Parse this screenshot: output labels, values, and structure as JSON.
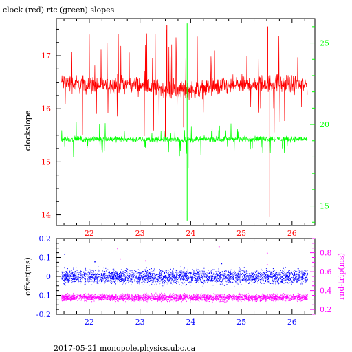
{
  "chart_data": [
    {
      "type": "line",
      "title": "clock (red) rtc (green) slopes",
      "ylabel": "clockslope",
      "xlim": [
        21.35,
        26.45
      ],
      "x_ticks": [
        "22",
        "23",
        "24",
        "25",
        "26"
      ],
      "ylim_left": [
        13.8,
        17.7
      ],
      "y_ticks_left": [
        "14",
        "15",
        "16",
        "17"
      ],
      "ylim_right": [
        13.8,
        26.5
      ],
      "y_ticks_right": [
        "15",
        "20",
        "25"
      ],
      "colors": {
        "left_axis": "#ff0000",
        "right_axis": "#00ff00",
        "x_axis": "#ff0000",
        "frame": "#000000"
      },
      "grid": false,
      "series": [
        {
          "name": "clock",
          "axis": "left",
          "color": "#ff0000",
          "x": [
            21.45,
            21.7,
            22.0,
            22.3,
            22.6,
            22.9,
            23.2,
            23.5,
            23.8,
            24.1,
            24.4,
            24.7,
            25.0,
            25.3,
            25.6,
            25.9,
            26.3
          ],
          "mean": [
            16.5,
            16.47,
            16.45,
            16.44,
            16.47,
            16.45,
            16.4,
            16.37,
            16.36,
            16.37,
            16.4,
            16.42,
            16.45,
            16.47,
            16.48,
            16.47,
            16.44
          ],
          "band": 0.25,
          "spikes": [
            {
              "x": 23.53,
              "y": 17.57
            },
            {
              "x": 23.5,
              "y": 15.45
            },
            {
              "x": 23.86,
              "y": 15.65
            },
            {
              "x": 25.52,
              "y": 17.55
            },
            {
              "x": 25.55,
              "y": 13.97
            }
          ]
        },
        {
          "name": "rtc",
          "axis": "right",
          "color": "#00ff00",
          "x": [
            21.45,
            22.0,
            22.6,
            23.2,
            23.8,
            24.4,
            25.0,
            25.6,
            26.3
          ],
          "mean": [
            19.1,
            19.1,
            19.1,
            19.08,
            19.05,
            19.1,
            19.1,
            19.12,
            19.1
          ],
          "band": 0.25,
          "spikes": [
            {
              "x": 23.93,
              "y": 26.2
            },
            {
              "x": 23.93,
              "y": 14.1
            },
            {
              "x": 23.95,
              "y": 17.3
            }
          ]
        }
      ]
    },
    {
      "type": "scatter",
      "ylabel": "offset(ms)",
      "ylabel_right": "rnd-trip(ms)",
      "xlim": [
        21.35,
        26.45
      ],
      "x_ticks": [
        "22",
        "23",
        "24",
        "25",
        "26"
      ],
      "ylim_left": [
        -0.2,
        0.2
      ],
      "y_ticks_left": [
        "-0.2",
        "-0.1",
        "0",
        "0.1",
        "0.2"
      ],
      "ylim_right": [
        0.15,
        0.95
      ],
      "y_ticks_right": [
        "0.2",
        "0.4",
        "0.6",
        "0.8"
      ],
      "colors": {
        "left_axis": "#0000ff",
        "right_axis": "#ff00ff",
        "x_axis": "#0000ff",
        "frame": "#000000"
      },
      "series": [
        {
          "name": "offset",
          "axis": "left",
          "color": "#0000ff",
          "x_range": [
            21.45,
            26.3
          ],
          "center": 0.0,
          "spread": 0.045,
          "outliers": [
            {
              "x": 21.5,
              "y": 0.12
            },
            {
              "x": 22.1,
              "y": 0.08
            },
            {
              "x": 24.6,
              "y": 0.07
            }
          ]
        },
        {
          "name": "rnd-trip",
          "axis": "right",
          "color": "#ff00ff",
          "x_range": [
            21.45,
            26.3
          ],
          "center": 0.33,
          "spread": 0.045,
          "outliers": [
            {
              "x": 22.55,
              "y": 0.85
            },
            {
              "x": 22.6,
              "y": 0.74
            },
            {
              "x": 23.1,
              "y": 0.72
            },
            {
              "x": 25.5,
              "y": 0.8
            },
            {
              "x": 25.5,
              "y": 0.68
            },
            {
              "x": 24.55,
              "y": 0.87
            }
          ]
        }
      ]
    }
  ],
  "footer": "2017-05-21 monopole.physics.ubc.ca"
}
